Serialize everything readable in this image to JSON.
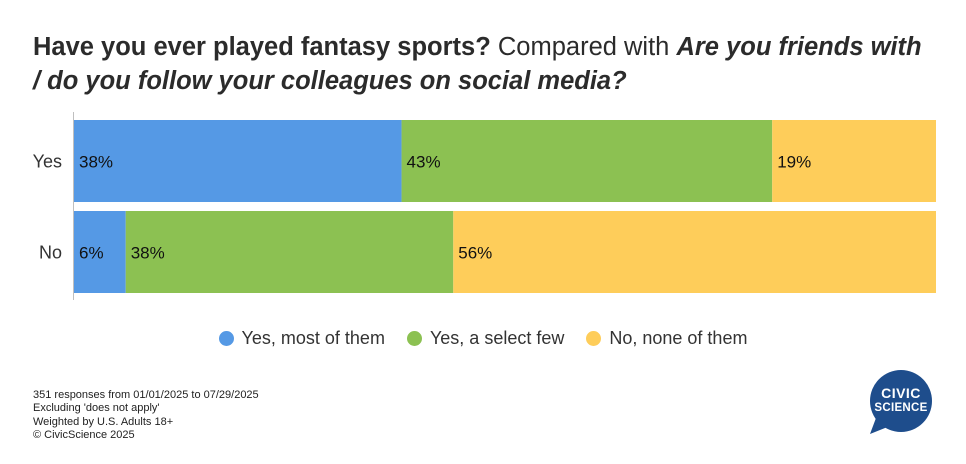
{
  "title": {
    "question1": "Have you ever played fantasy sports?",
    "connector": "Compared with",
    "question2": "Are you friends with / do you follow your colleagues on social media?"
  },
  "chart_data": {
    "type": "bar",
    "orientation": "horizontal",
    "stacked": true,
    "percent": true,
    "categories": [
      "Yes",
      "No"
    ],
    "series": [
      {
        "name": "Yes, most of them",
        "color": "#5599E5",
        "values": [
          38,
          6
        ],
        "labels": [
          "38%",
          "6%"
        ]
      },
      {
        "name": "Yes, a select few",
        "color": "#8CC152",
        "values": [
          43,
          38
        ],
        "labels": [
          "43%",
          "38%"
        ]
      },
      {
        "name": "No, none of them",
        "color": "#FECD5A",
        "values": [
          19,
          56
        ],
        "labels": [
          "19%",
          "56%"
        ]
      }
    ],
    "xlim": [
      0,
      100
    ],
    "legend_position": "bottom",
    "grid": false
  },
  "footnotes": {
    "line1": "351 responses from 01/01/2025 to 07/29/2025",
    "line2": "Excluding 'does not apply'",
    "line3": "Weighted by U.S. Adults 18+",
    "line4": "© CivicScience 2025"
  },
  "logo": {
    "line1": "CIVIC",
    "line2": "SCIENCE",
    "color": "#1E4D8C"
  }
}
